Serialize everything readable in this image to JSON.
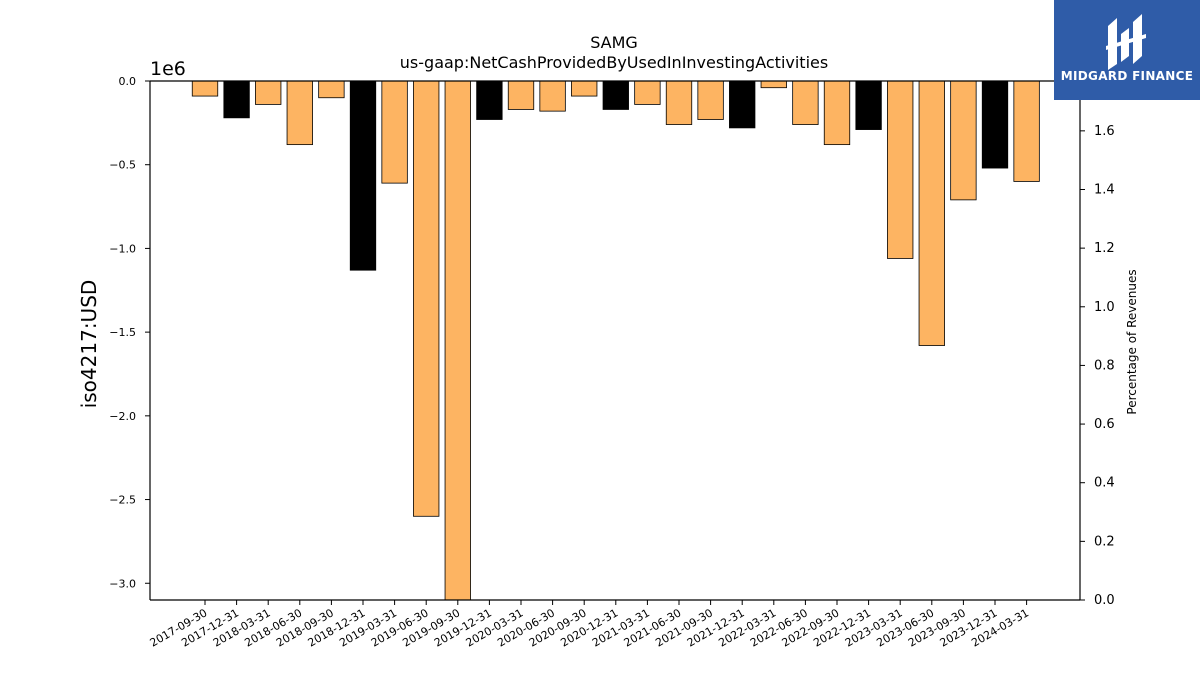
{
  "chart_data": {
    "type": "bar",
    "title": "SAMG",
    "subtitle": "us-gaap:NetCashProvidedByUsedInInvestingActivities",
    "ylabel": "iso4217:USD",
    "y_offset_label": "1e6",
    "y2label": "Percentage of Revenues",
    "ylim": [
      -3.1,
      0
    ],
    "y2lim": [
      0,
      1.77
    ],
    "yticks": [
      "0.0",
      "−0.5",
      "−1.0",
      "−1.5",
      "−2.0",
      "−2.5",
      "−3.0"
    ],
    "y2ticks": [
      "0.0",
      "0.2",
      "0.4",
      "0.6",
      "0.8",
      "1.0",
      "1.2",
      "1.4",
      "1.6"
    ],
    "categories": [
      "2017-09-30",
      "2017-12-31",
      "2018-03-31",
      "2018-06-30",
      "2018-09-30",
      "2018-12-31",
      "2019-03-31",
      "2019-06-30",
      "2019-09-30",
      "2019-12-31",
      "2020-03-31",
      "2020-06-30",
      "2020-09-30",
      "2020-12-31",
      "2021-03-31",
      "2021-06-30",
      "2021-09-30",
      "2021-12-31",
      "2022-03-31",
      "2022-06-30",
      "2022-09-30",
      "2022-12-31",
      "2023-03-31",
      "2023-06-30",
      "2023-09-30",
      "2023-12-31",
      "2024-03-31"
    ],
    "values": [
      -0.09,
      -0.22,
      -0.14,
      -0.38,
      -0.1,
      -1.13,
      -0.61,
      -2.6,
      -3.1,
      -0.23,
      -0.17,
      -0.18,
      -0.09,
      -0.17,
      -0.14,
      -0.26,
      -0.23,
      -0.28,
      -0.04,
      -0.26,
      -0.38,
      -0.29,
      -1.06,
      -1.58,
      -0.71,
      -0.52,
      -0.6
    ],
    "bar_fill": [
      "#fdb462",
      "#000000",
      "#fdb462",
      "#fdb462",
      "#fdb462",
      "#000000",
      "#fdb462",
      "#fdb462",
      "#fdb462",
      "#000000",
      "#fdb462",
      "#fdb462",
      "#fdb462",
      "#000000",
      "#fdb462",
      "#fdb462",
      "#fdb462",
      "#000000",
      "#fdb462",
      "#fdb462",
      "#fdb462",
      "#000000",
      "#fdb462",
      "#fdb462",
      "#fdb462",
      "#000000",
      "#fdb462"
    ],
    "grid": false
  },
  "logo": {
    "text": "MIDGARD FINANCE",
    "color": "#2f5ca8"
  }
}
